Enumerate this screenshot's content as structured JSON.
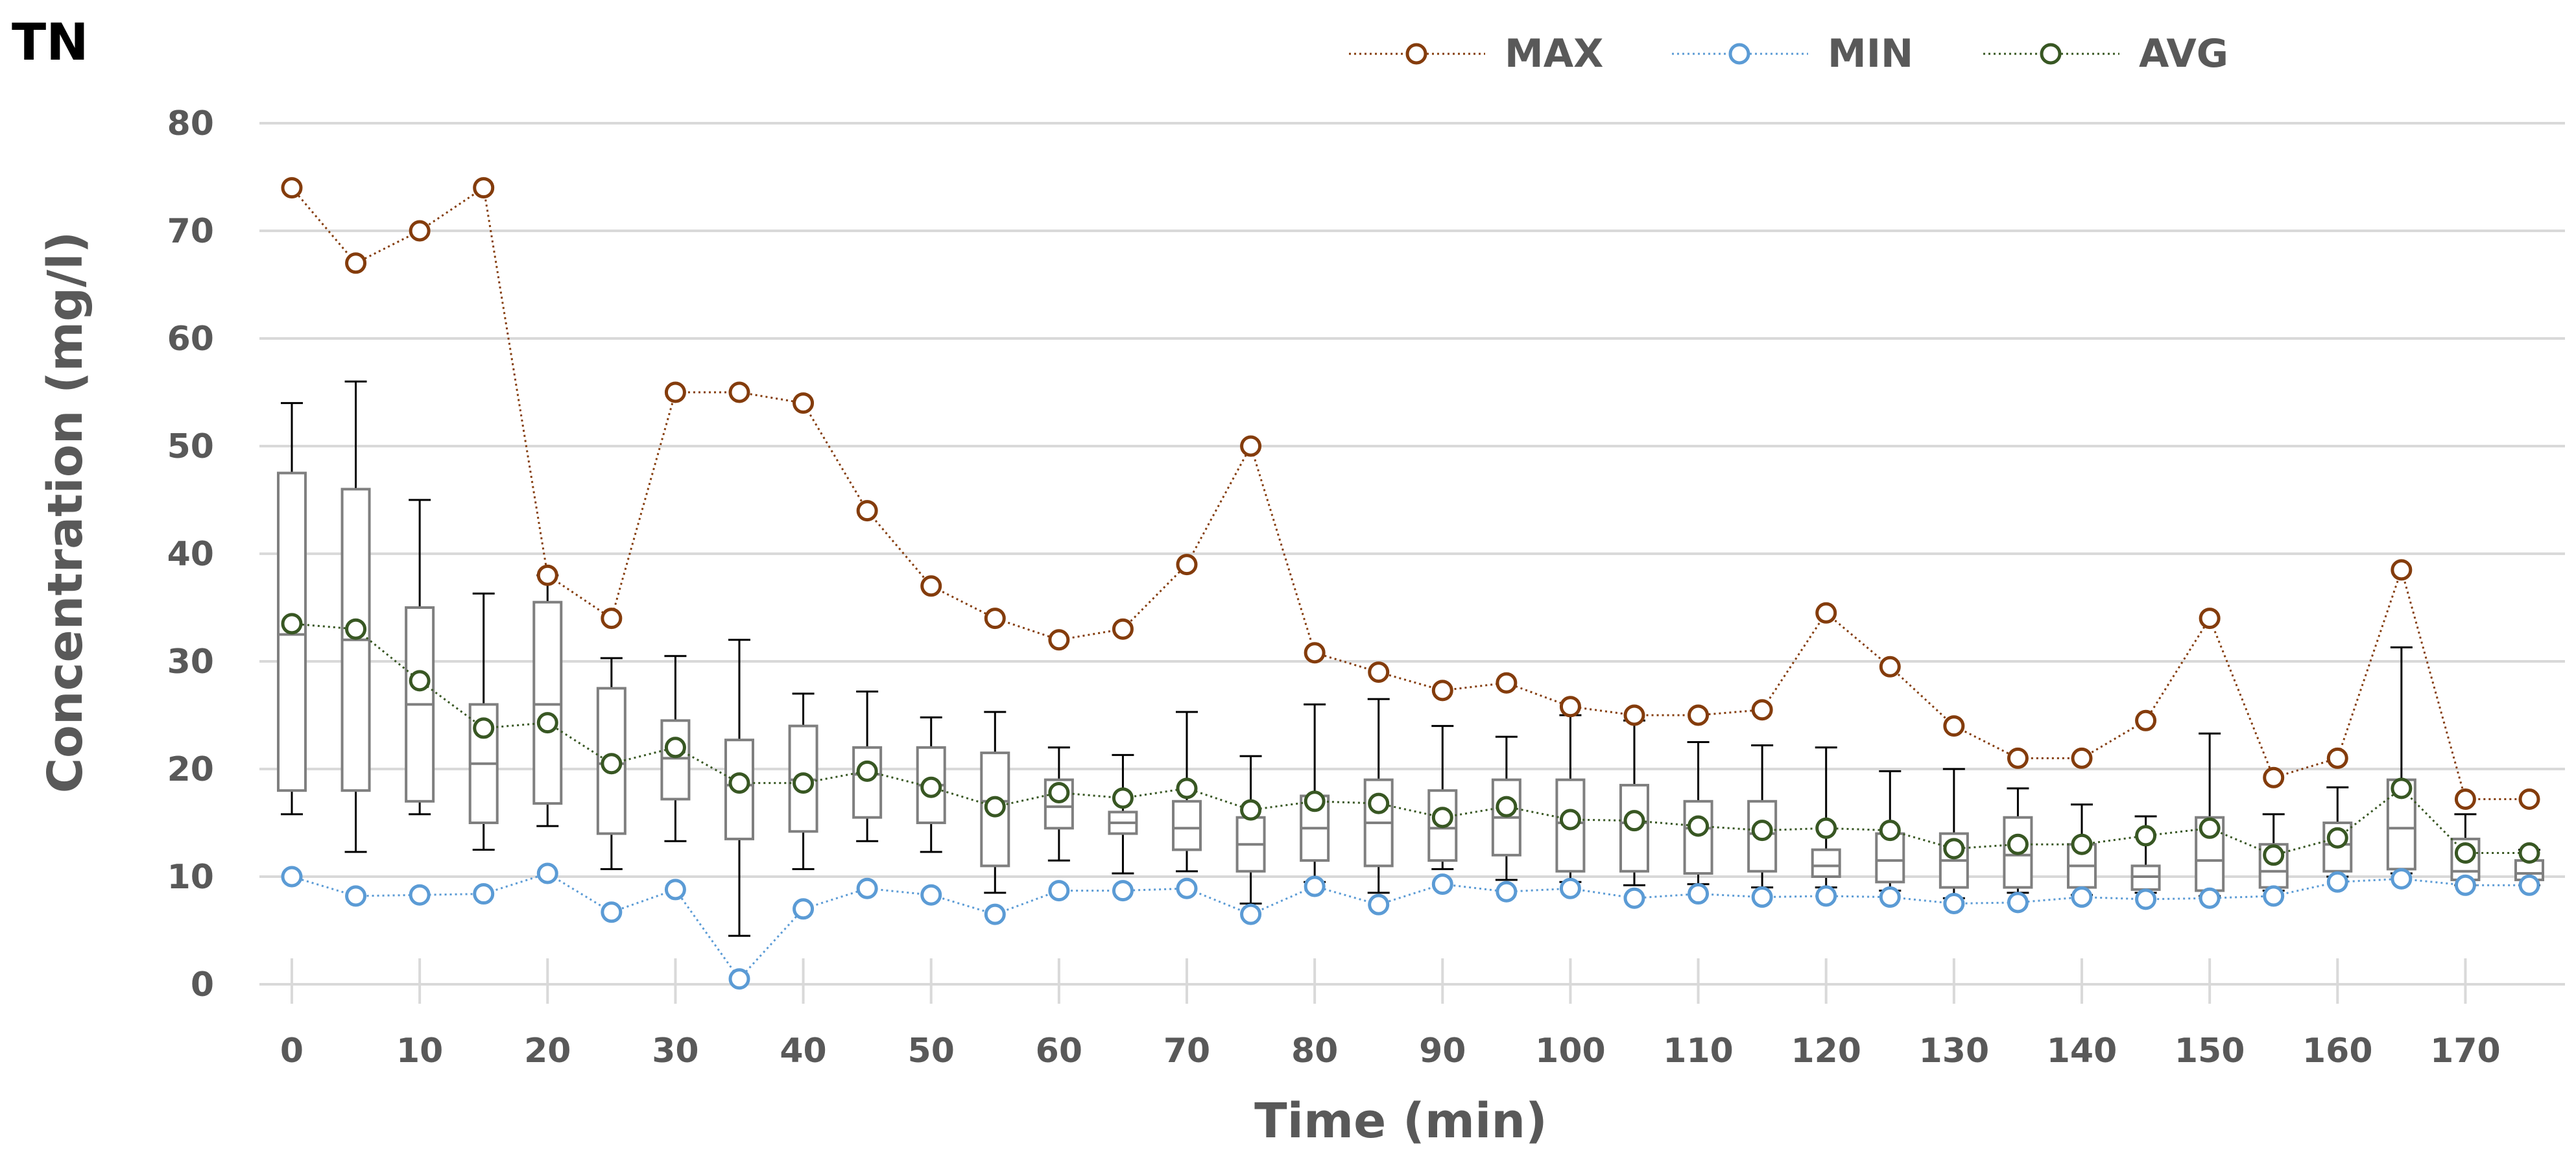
{
  "chart_data": {
    "type": "box",
    "title": "TN",
    "xlabel": "Time (min)",
    "ylabel": "Concentration (mg/l)",
    "ylim": [
      0,
      80
    ],
    "xlim": [
      -2,
      176
    ],
    "grid": true,
    "y_ticks": [
      0,
      10,
      20,
      30,
      40,
      50,
      60,
      70,
      80
    ],
    "x_ticks": [
      0,
      10,
      20,
      30,
      40,
      50,
      60,
      70,
      80,
      90,
      100,
      110,
      120,
      130,
      140,
      150,
      160,
      170
    ],
    "legend_position": "top-center",
    "colors": {
      "max": "#843c0c",
      "min": "#5b9bd5",
      "avg": "#385723",
      "box": "#7f7f7f",
      "whisker": "#000000",
      "grid": "#d9d9d9",
      "text": "#595959"
    },
    "x": [
      0,
      5,
      10,
      15,
      20,
      25,
      30,
      35,
      40,
      45,
      50,
      55,
      60,
      65,
      70,
      75,
      80,
      85,
      90,
      95,
      100,
      105,
      110,
      115,
      120,
      125,
      130,
      135,
      140,
      145,
      150,
      155,
      160,
      165,
      170,
      175
    ],
    "boxes": [
      {
        "x": 0,
        "whisker_low": 15.8,
        "q1": 18.0,
        "median": 32.5,
        "q3": 47.5,
        "whisker_high": 54.0
      },
      {
        "x": 5,
        "whisker_low": 12.3,
        "q1": 18.0,
        "median": 32.0,
        "q3": 46.0,
        "whisker_high": 56.0
      },
      {
        "x": 10,
        "whisker_low": 15.8,
        "q1": 17.0,
        "median": 26.0,
        "q3": 35.0,
        "whisker_high": 45.0
      },
      {
        "x": 15,
        "whisker_low": 12.5,
        "q1": 15.0,
        "median": 20.5,
        "q3": 26.0,
        "whisker_high": 36.3
      },
      {
        "x": 20,
        "whisker_low": 14.7,
        "q1": 16.8,
        "median": 26.0,
        "q3": 35.5,
        "whisker_high": 38.0
      },
      {
        "x": 25,
        "whisker_low": 10.7,
        "q1": 14.0,
        "median": 20.5,
        "q3": 27.5,
        "whisker_high": 30.3
      },
      {
        "x": 30,
        "whisker_low": 13.3,
        "q1": 17.2,
        "median": 21.0,
        "q3": 24.5,
        "whisker_high": 30.5
      },
      {
        "x": 35,
        "whisker_low": 4.5,
        "q1": 13.5,
        "median": 18.5,
        "q3": 22.7,
        "whisker_high": 32.0
      },
      {
        "x": 40,
        "whisker_low": 10.7,
        "q1": 14.2,
        "median": 19.0,
        "q3": 24.0,
        "whisker_high": 27.0
      },
      {
        "x": 45,
        "whisker_low": 13.3,
        "q1": 15.5,
        "median": 19.5,
        "q3": 22.0,
        "whisker_high": 27.2
      },
      {
        "x": 50,
        "whisker_low": 12.3,
        "q1": 15.0,
        "median": 18.5,
        "q3": 22.0,
        "whisker_high": 24.8
      },
      {
        "x": 55,
        "whisker_low": 8.5,
        "q1": 11.0,
        "median": 17.0,
        "q3": 21.5,
        "whisker_high": 25.3
      },
      {
        "x": 60,
        "whisker_low": 11.5,
        "q1": 14.5,
        "median": 16.5,
        "q3": 19.0,
        "whisker_high": 22.0
      },
      {
        "x": 65,
        "whisker_low": 10.3,
        "q1": 14.0,
        "median": 15.0,
        "q3": 16.0,
        "whisker_high": 21.3
      },
      {
        "x": 70,
        "whisker_low": 10.5,
        "q1": 12.5,
        "median": 14.5,
        "q3": 17.0,
        "whisker_high": 25.3
      },
      {
        "x": 75,
        "whisker_low": 7.5,
        "q1": 10.5,
        "median": 13.0,
        "q3": 15.5,
        "whisker_high": 21.2
      },
      {
        "x": 80,
        "whisker_low": 9.5,
        "q1": 11.5,
        "median": 14.5,
        "q3": 17.5,
        "whisker_high": 26.0
      },
      {
        "x": 85,
        "whisker_low": 8.5,
        "q1": 11.0,
        "median": 15.0,
        "q3": 19.0,
        "whisker_high": 26.5
      },
      {
        "x": 90,
        "whisker_low": 10.7,
        "q1": 11.5,
        "median": 14.5,
        "q3": 18.0,
        "whisker_high": 24.0
      },
      {
        "x": 95,
        "whisker_low": 9.7,
        "q1": 12.0,
        "median": 15.5,
        "q3": 19.0,
        "whisker_high": 23.0
      },
      {
        "x": 100,
        "whisker_low": 9.5,
        "q1": 10.5,
        "median": 15.0,
        "q3": 19.0,
        "whisker_high": 25.0
      },
      {
        "x": 105,
        "whisker_low": 9.2,
        "q1": 10.5,
        "median": 15.0,
        "q3": 18.5,
        "whisker_high": 24.5
      },
      {
        "x": 110,
        "whisker_low": 9.3,
        "q1": 10.3,
        "median": 14.5,
        "q3": 17.0,
        "whisker_high": 22.5
      },
      {
        "x": 115,
        "whisker_low": 9.0,
        "q1": 10.5,
        "median": 14.0,
        "q3": 17.0,
        "whisker_high": 22.2
      },
      {
        "x": 120,
        "whisker_low": 9.0,
        "q1": 10.0,
        "median": 11.0,
        "q3": 12.5,
        "whisker_high": 22.0
      },
      {
        "x": 125,
        "whisker_low": 8.7,
        "q1": 9.5,
        "median": 11.5,
        "q3": 14.0,
        "whisker_high": 19.8
      },
      {
        "x": 130,
        "whisker_low": 8.0,
        "q1": 9.0,
        "median": 11.5,
        "q3": 14.0,
        "whisker_high": 20.0
      },
      {
        "x": 135,
        "whisker_low": 8.5,
        "q1": 9.0,
        "median": 12.0,
        "q3": 15.5,
        "whisker_high": 18.2
      },
      {
        "x": 140,
        "whisker_low": 8.3,
        "q1": 9.0,
        "median": 11.0,
        "q3": 13.0,
        "whisker_high": 16.7
      },
      {
        "x": 145,
        "whisker_low": 8.5,
        "q1": 8.8,
        "median": 10.0,
        "q3": 11.0,
        "whisker_high": 15.6
      },
      {
        "x": 150,
        "whisker_low": 8.2,
        "q1": 8.7,
        "median": 11.5,
        "q3": 15.5,
        "whisker_high": 23.3
      },
      {
        "x": 155,
        "whisker_low": 8.7,
        "q1": 9.0,
        "median": 10.5,
        "q3": 13.0,
        "whisker_high": 15.8
      },
      {
        "x": 160,
        "whisker_low": 10.0,
        "q1": 10.5,
        "median": 13.0,
        "q3": 15.0,
        "whisker_high": 18.3
      },
      {
        "x": 165,
        "whisker_low": 10.3,
        "q1": 10.7,
        "median": 14.5,
        "q3": 19.0,
        "whisker_high": 31.3
      },
      {
        "x": 170,
        "whisker_low": 9.2,
        "q1": 9.7,
        "median": 10.5,
        "q3": 13.5,
        "whisker_high": 15.8
      },
      {
        "x": 175,
        "whisker_low": 9.2,
        "q1": 9.7,
        "median": 10.3,
        "q3": 11.5,
        "whisker_high": 12.5
      }
    ],
    "series": [
      {
        "name": "MAX",
        "key": "max",
        "values": [
          74,
          67,
          70,
          74,
          38,
          34,
          55,
          55,
          54,
          44,
          37,
          34,
          32,
          33,
          39,
          50,
          30.8,
          29,
          27.3,
          28,
          25.8,
          25,
          25,
          25.5,
          34.5,
          29.5,
          24,
          21,
          21,
          24.5,
          34,
          19.2,
          21,
          38.5,
          17.2,
          17.2
        ]
      },
      {
        "name": "MIN",
        "key": "min",
        "values": [
          10,
          8.2,
          8.3,
          8.4,
          10.3,
          6.7,
          8.8,
          0.5,
          7,
          8.9,
          8.3,
          6.5,
          8.7,
          8.7,
          8.9,
          6.5,
          9.1,
          7.4,
          9.3,
          8.6,
          8.9,
          8,
          8.4,
          8.1,
          8.2,
          8.1,
          7.5,
          7.6,
          8.1,
          7.9,
          8,
          8.2,
          9.5,
          9.8,
          9.2,
          9.2
        ]
      },
      {
        "name": "AVG",
        "key": "avg",
        "values": [
          33.5,
          33,
          28.2,
          23.8,
          24.3,
          20.5,
          22,
          18.7,
          18.7,
          19.8,
          18.3,
          16.5,
          17.8,
          17.3,
          18.2,
          16.2,
          17,
          16.8,
          15.5,
          16.5,
          15.3,
          15.2,
          14.7,
          14.3,
          14.5,
          14.3,
          12.6,
          13,
          13,
          13.8,
          14.5,
          12,
          13.6,
          18.2,
          12.2,
          12.2
        ]
      }
    ]
  }
}
